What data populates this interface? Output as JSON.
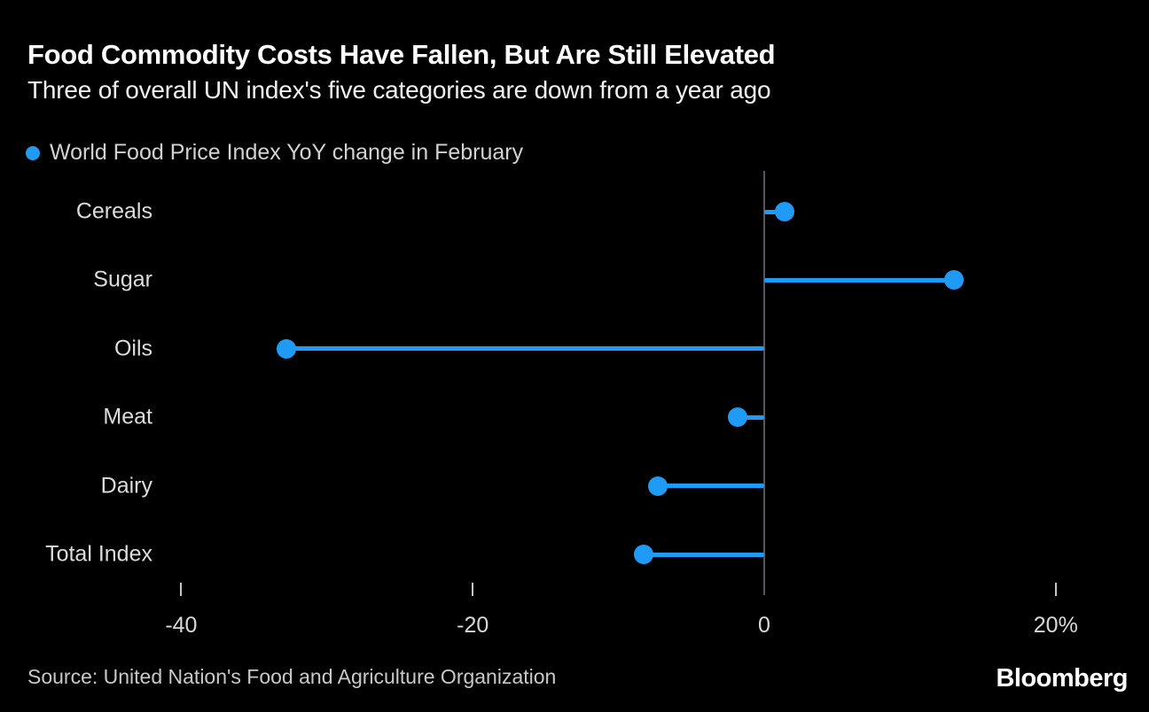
{
  "header": {
    "title": "Food Commodity Costs Have Fallen, But Are Still Elevated",
    "subtitle": "Three of overall UN index's five categories are down from a year ago"
  },
  "legend": {
    "label": "World Food Price Index YoY change in February",
    "marker_color": "#1f9bf5"
  },
  "chart_data": {
    "type": "bar",
    "variant": "horizontal-lollipop",
    "categories": [
      "Cereals",
      "Sugar",
      "Oils",
      "Meat",
      "Dairy",
      "Total Index"
    ],
    "values": [
      1.4,
      13.0,
      -32.8,
      -1.8,
      -7.3,
      -8.3
    ],
    "unit": "%",
    "title": "Food Commodity Costs Have Fallen, But Are Still Elevated",
    "subtitle": "Three of overall UN index's five categories are down from a year ago",
    "legend_entry": "World Food Price Index YoY change in February",
    "xlabel": "",
    "ylabel": "",
    "xticks": [
      -40,
      -20,
      0,
      20
    ],
    "xtick_labels": [
      "-40",
      "-20",
      "0",
      "20%"
    ],
    "xlim": [
      -41,
      25
    ],
    "grid": false,
    "zero_baseline": true,
    "accent_color": "#1f9bf5",
    "axis_line_color": "#55565a",
    "background_color": "#000000"
  },
  "footer": {
    "source": "Source: United Nation's Food and Agriculture Organization",
    "brand": "Bloomberg"
  }
}
